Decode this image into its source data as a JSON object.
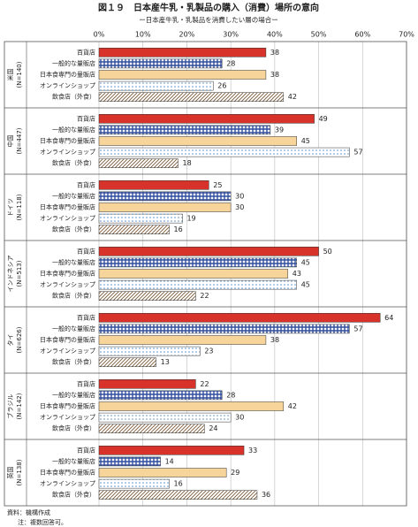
{
  "chart_data": {
    "type": "bar",
    "orientation": "horizontal",
    "title": "図１９　日本産牛乳・乳製品の購入（消費）場所の意向",
    "subtitle": "ー日本産牛乳・乳製品を消費したい層の場合ー",
    "groups": [
      "米国",
      "中国",
      "ドイツ",
      "インドネシア",
      "タイ",
      "ブラジル",
      "英国"
    ],
    "group_n": [
      "(N=140)",
      "(N=447)",
      "(N=118)",
      "(N=513)",
      "(N=626)",
      "(N=142)",
      "(N=138)"
    ],
    "series": [
      {
        "name": "百貨店",
        "color": "#d7332a",
        "pattern": "solid",
        "values": [
          38,
          49,
          25,
          50,
          64,
          22,
          33
        ]
      },
      {
        "name": "一般的な量販店",
        "color": "#2f4e9c",
        "pattern": "crosshatch",
        "values": [
          28,
          39,
          30,
          45,
          57,
          28,
          14
        ]
      },
      {
        "name": "日本食専門の量販店",
        "color": "#f6d49a",
        "pattern": "solid",
        "values": [
          38,
          45,
          30,
          43,
          38,
          42,
          29
        ]
      },
      {
        "name": "オンラインショップ",
        "color": "#5a8fc8",
        "pattern": "dots",
        "values": [
          26,
          57,
          19,
          45,
          23,
          30,
          16
        ]
      },
      {
        "name": "飲食店（外食）",
        "color": "#7a5a3a",
        "pattern": "diagonal",
        "values": [
          42,
          18,
          16,
          22,
          13,
          24,
          36
        ]
      }
    ],
    "xlim": [
      0,
      70
    ],
    "xticks": [
      {
        "value": 0,
        "label": "0%"
      },
      {
        "value": 10,
        "label": "10%"
      },
      {
        "value": 20,
        "label": "20%"
      },
      {
        "value": 30,
        "label": "30%"
      },
      {
        "value": 40,
        "label": "40%"
      },
      {
        "value": 50,
        "label": "50%"
      },
      {
        "value": 60,
        "label": "60%"
      },
      {
        "value": 70,
        "label": "70%"
      }
    ],
    "grid": true,
    "notes": [
      "資料：機構作成",
      "注：複数回答可。"
    ]
  }
}
